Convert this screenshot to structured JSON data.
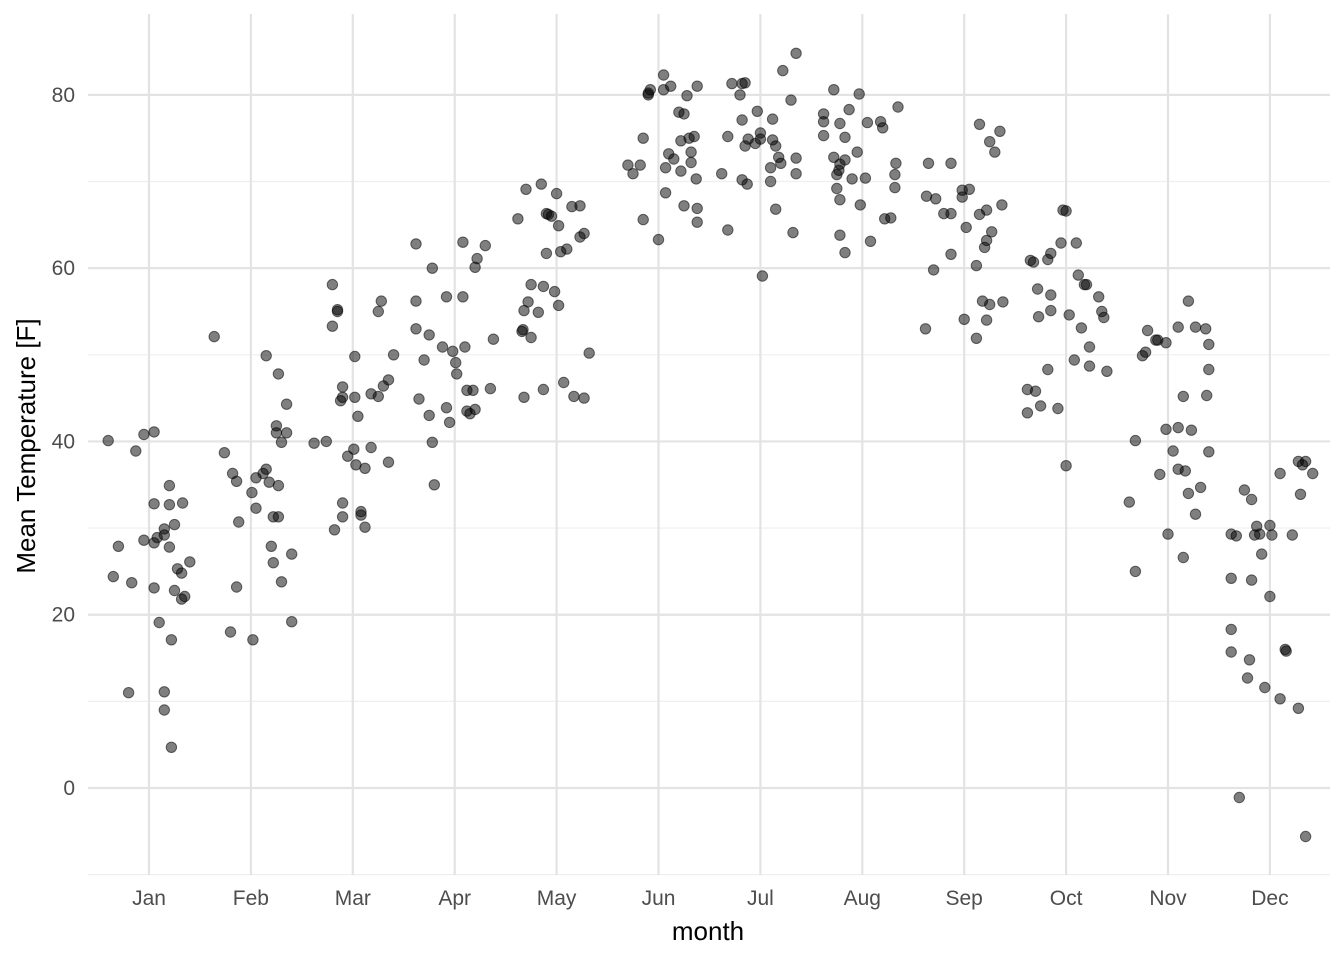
{
  "chart_data": {
    "type": "scatter",
    "title": "",
    "xlabel": "month",
    "ylabel": "Mean Temperature [F]",
    "categories": [
      "Jan",
      "Feb",
      "Mar",
      "Apr",
      "May",
      "Jun",
      "Jul",
      "Aug",
      "Sep",
      "Oct",
      "Nov",
      "Dec"
    ],
    "ylim": [
      -10,
      89
    ],
    "y_ticks": [
      0,
      20,
      40,
      60,
      80
    ],
    "grid": true,
    "legend": "none",
    "point_color": "#000000",
    "point_opacity": 0.5,
    "x_unit": "month index (1 = Jan), jittered horizontally",
    "points": [
      [
        0.6,
        40.1
      ],
      [
        0.7,
        27.9
      ],
      [
        0.65,
        24.4
      ],
      [
        0.8,
        11
      ],
      [
        0.83,
        23.7
      ],
      [
        0.87,
        38.9
      ],
      [
        0.95,
        28.6
      ],
      [
        0.95,
        40.8
      ],
      [
        1.05,
        41.1
      ],
      [
        1.05,
        23.1
      ],
      [
        1.05,
        32.8
      ],
      [
        1.05,
        28.3
      ],
      [
        1.1,
        19.1
      ],
      [
        1.15,
        29.2
      ],
      [
        1.15,
        29.9
      ],
      [
        1.15,
        11.1
      ],
      [
        1.15,
        9
      ],
      [
        1.2,
        27.8
      ],
      [
        1.2,
        32.7
      ],
      [
        1.2,
        34.9
      ],
      [
        1.22,
        17.1
      ],
      [
        1.22,
        4.7
      ],
      [
        1.25,
        30.4
      ],
      [
        1.25,
        22.8
      ],
      [
        1.28,
        25.3
      ],
      [
        1.32,
        24.8
      ],
      [
        1.32,
        21.8
      ],
      [
        1.33,
        32.9
      ],
      [
        1.35,
        22.1
      ],
      [
        1.4,
        26.1
      ],
      [
        1.08,
        28.9
      ],
      [
        1.64,
        52.1
      ],
      [
        1.74,
        38.7
      ],
      [
        1.8,
        18
      ],
      [
        1.82,
        36.3
      ],
      [
        1.86,
        35.4
      ],
      [
        1.86,
        23.2
      ],
      [
        1.88,
        30.7
      ],
      [
        2.01,
        34.1
      ],
      [
        2.02,
        17.1
      ],
      [
        2.05,
        32.3
      ],
      [
        2.05,
        35.8
      ],
      [
        2.12,
        36.3
      ],
      [
        2.15,
        36.8
      ],
      [
        2.15,
        49.9
      ],
      [
        2.18,
        35.3
      ],
      [
        2.2,
        27.9
      ],
      [
        2.22,
        31.3
      ],
      [
        2.22,
        26
      ],
      [
        2.25,
        41.8
      ],
      [
        2.25,
        41
      ],
      [
        2.27,
        47.8
      ],
      [
        2.27,
        31.3
      ],
      [
        2.27,
        34.9
      ],
      [
        2.3,
        23.8
      ],
      [
        2.3,
        39.9
      ],
      [
        2.35,
        41
      ],
      [
        2.35,
        44.3
      ],
      [
        2.4,
        27
      ],
      [
        2.4,
        19.2
      ],
      [
        2.62,
        39.8
      ],
      [
        2.74,
        40
      ],
      [
        2.8,
        58.1
      ],
      [
        2.8,
        53.3
      ],
      [
        2.82,
        29.8
      ],
      [
        2.85,
        55.2
      ],
      [
        2.85,
        55
      ],
      [
        2.88,
        44.7
      ],
      [
        2.9,
        31.3
      ],
      [
        2.9,
        32.9
      ],
      [
        2.9,
        45.1
      ],
      [
        2.9,
        46.3
      ],
      [
        2.95,
        38.3
      ],
      [
        3.01,
        39.1
      ],
      [
        3.02,
        49.8
      ],
      [
        3.02,
        45.1
      ],
      [
        3.03,
        37.3
      ],
      [
        3.05,
        42.9
      ],
      [
        3.08,
        31.5
      ],
      [
        3.08,
        31.9
      ],
      [
        3.12,
        36.9
      ],
      [
        3.12,
        30.1
      ],
      [
        3.18,
        39.3
      ],
      [
        3.18,
        45.5
      ],
      [
        3.25,
        55
      ],
      [
        3.25,
        45.2
      ],
      [
        3.28,
        56.2
      ],
      [
        3.3,
        46.4
      ],
      [
        3.35,
        47.1
      ],
      [
        3.35,
        37.6
      ],
      [
        3.4,
        50
      ],
      [
        3.62,
        62.8
      ],
      [
        3.62,
        56.2
      ],
      [
        3.62,
        53
      ],
      [
        3.65,
        44.9
      ],
      [
        3.7,
        49.4
      ],
      [
        3.75,
        43
      ],
      [
        3.75,
        52.3
      ],
      [
        3.78,
        60
      ],
      [
        3.78,
        39.9
      ],
      [
        3.8,
        35
      ],
      [
        3.88,
        50.9
      ],
      [
        3.92,
        56.7
      ],
      [
        3.92,
        43.9
      ],
      [
        3.95,
        42.2
      ],
      [
        3.98,
        50.4
      ],
      [
        4.01,
        49.1
      ],
      [
        4.02,
        47.8
      ],
      [
        4.08,
        63
      ],
      [
        4.08,
        56.7
      ],
      [
        4.1,
        50.9
      ],
      [
        4.12,
        45.9
      ],
      [
        4.12,
        43.5
      ],
      [
        4.15,
        43.2
      ],
      [
        4.18,
        45.9
      ],
      [
        4.2,
        60.1
      ],
      [
        4.2,
        43.7
      ],
      [
        4.22,
        61.1
      ],
      [
        4.3,
        62.6
      ],
      [
        4.35,
        46.1
      ],
      [
        4.38,
        51.8
      ],
      [
        4.62,
        65.7
      ],
      [
        4.66,
        52.7
      ],
      [
        4.67,
        52.9
      ],
      [
        4.68,
        55.1
      ],
      [
        4.68,
        45.1
      ],
      [
        4.7,
        69.1
      ],
      [
        4.72,
        56.1
      ],
      [
        4.75,
        52
      ],
      [
        4.75,
        58.1
      ],
      [
        4.82,
        54.9
      ],
      [
        4.85,
        69.7
      ],
      [
        4.87,
        57.9
      ],
      [
        4.87,
        46
      ],
      [
        4.9,
        61.7
      ],
      [
        4.9,
        66.3
      ],
      [
        4.92,
        66.2
      ],
      [
        4.95,
        66
      ],
      [
        4.98,
        57.3
      ],
      [
        5.0,
        68.6
      ],
      [
        5.02,
        64.9
      ],
      [
        5.02,
        55.7
      ],
      [
        5.04,
        61.9
      ],
      [
        5.07,
        46.8
      ],
      [
        5.1,
        62.2
      ],
      [
        5.15,
        67.1
      ],
      [
        5.17,
        45.2
      ],
      [
        5.23,
        67.2
      ],
      [
        5.23,
        63.6
      ],
      [
        5.27,
        64
      ],
      [
        5.27,
        45
      ],
      [
        5.32,
        50.2
      ],
      [
        5.7,
        71.9
      ],
      [
        5.75,
        70.9
      ],
      [
        5.82,
        71.9
      ],
      [
        5.85,
        75
      ],
      [
        5.85,
        65.6
      ],
      [
        5.9,
        80.2
      ],
      [
        5.9,
        80
      ],
      [
        5.92,
        80.6
      ],
      [
        6.0,
        63.3
      ],
      [
        6.05,
        82.3
      ],
      [
        6.05,
        80.6
      ],
      [
        6.07,
        71.6
      ],
      [
        6.07,
        68.7
      ],
      [
        6.1,
        73.2
      ],
      [
        6.12,
        81
      ],
      [
        6.15,
        72.6
      ],
      [
        6.2,
        78
      ],
      [
        6.22,
        71.2
      ],
      [
        6.22,
        74.7
      ],
      [
        6.25,
        67.2
      ],
      [
        6.25,
        77.8
      ],
      [
        6.28,
        79.9
      ],
      [
        6.3,
        75
      ],
      [
        6.32,
        73.4
      ],
      [
        6.32,
        72.2
      ],
      [
        6.35,
        75.2
      ],
      [
        6.37,
        70.3
      ],
      [
        6.38,
        81
      ],
      [
        6.38,
        65.3
      ],
      [
        6.38,
        66.9
      ],
      [
        6.62,
        70.9
      ],
      [
        6.68,
        64.4
      ],
      [
        6.68,
        75.2
      ],
      [
        6.72,
        81.3
      ],
      [
        6.8,
        80
      ],
      [
        6.82,
        81.3
      ],
      [
        6.82,
        70.2
      ],
      [
        6.82,
        77.1
      ],
      [
        6.85,
        81.4
      ],
      [
        6.85,
        74.1
      ],
      [
        6.87,
        69.7
      ],
      [
        6.88,
        74.9
      ],
      [
        6.95,
        74.4
      ],
      [
        6.97,
        78.1
      ],
      [
        7.0,
        74.9
      ],
      [
        7.0,
        75.6
      ],
      [
        7.02,
        59.1
      ],
      [
        7.1,
        70
      ],
      [
        7.1,
        71.6
      ],
      [
        7.12,
        77.2
      ],
      [
        7.12,
        74.8
      ],
      [
        7.15,
        66.8
      ],
      [
        7.15,
        74.1
      ],
      [
        7.18,
        72.8
      ],
      [
        7.2,
        72.1
      ],
      [
        7.22,
        82.8
      ],
      [
        7.3,
        79.4
      ],
      [
        7.32,
        64.1
      ],
      [
        7.35,
        72.7
      ],
      [
        7.35,
        70.9
      ],
      [
        7.35,
        84.8
      ],
      [
        7.62,
        77.8
      ],
      [
        7.62,
        75.3
      ],
      [
        7.62,
        76.9
      ],
      [
        7.72,
        80.6
      ],
      [
        7.72,
        72.8
      ],
      [
        7.75,
        70.8
      ],
      [
        7.75,
        69.2
      ],
      [
        7.77,
        71.3
      ],
      [
        7.78,
        67.9
      ],
      [
        7.78,
        63.8
      ],
      [
        7.78,
        76.7
      ],
      [
        7.78,
        72
      ],
      [
        7.83,
        75.1
      ],
      [
        7.83,
        72.5
      ],
      [
        7.83,
        61.8
      ],
      [
        7.87,
        78.3
      ],
      [
        7.9,
        70.3
      ],
      [
        7.95,
        73.4
      ],
      [
        7.97,
        80.1
      ],
      [
        7.98,
        67.3
      ],
      [
        8.03,
        70.4
      ],
      [
        8.05,
        76.8
      ],
      [
        8.08,
        63.1
      ],
      [
        8.18,
        76.9
      ],
      [
        8.2,
        76.2
      ],
      [
        8.22,
        65.7
      ],
      [
        8.28,
        65.8
      ],
      [
        8.32,
        70.8
      ],
      [
        8.32,
        69.3
      ],
      [
        8.33,
        72.1
      ],
      [
        8.35,
        78.6
      ],
      [
        8.62,
        53
      ],
      [
        8.63,
        68.3
      ],
      [
        8.65,
        72.1
      ],
      [
        8.7,
        59.8
      ],
      [
        8.72,
        68
      ],
      [
        8.8,
        66.3
      ],
      [
        8.87,
        72.1
      ],
      [
        8.87,
        66.3
      ],
      [
        8.87,
        61.6
      ],
      [
        8.98,
        69
      ],
      [
        8.98,
        68.2
      ],
      [
        9.0,
        54.1
      ],
      [
        9.02,
        64.7
      ],
      [
        9.05,
        69.1
      ],
      [
        9.12,
        51.9
      ],
      [
        9.12,
        60.3
      ],
      [
        9.15,
        76.6
      ],
      [
        9.15,
        66.2
      ],
      [
        9.18,
        56.2
      ],
      [
        9.2,
        62.4
      ],
      [
        9.22,
        63.2
      ],
      [
        9.22,
        54
      ],
      [
        9.22,
        66.7
      ],
      [
        9.25,
        55.8
      ],
      [
        9.25,
        74.6
      ],
      [
        9.27,
        64.2
      ],
      [
        9.3,
        73.4
      ],
      [
        9.35,
        75.8
      ],
      [
        9.37,
        67.3
      ],
      [
        9.38,
        56.1
      ],
      [
        9.62,
        46
      ],
      [
        9.62,
        43.3
      ],
      [
        9.65,
        60.9
      ],
      [
        9.68,
        60.7
      ],
      [
        9.7,
        45.8
      ],
      [
        9.72,
        57.6
      ],
      [
        9.73,
        54.4
      ],
      [
        9.75,
        44.1
      ],
      [
        9.82,
        61
      ],
      [
        9.82,
        48.3
      ],
      [
        9.85,
        61.7
      ],
      [
        9.85,
        56.9
      ],
      [
        9.85,
        55.1
      ],
      [
        9.92,
        43.8
      ],
      [
        9.95,
        62.9
      ],
      [
        9.97,
        66.7
      ],
      [
        10.0,
        66.6
      ],
      [
        10.0,
        37.2
      ],
      [
        10.03,
        54.6
      ],
      [
        10.08,
        49.4
      ],
      [
        10.1,
        62.9
      ],
      [
        10.12,
        59.2
      ],
      [
        10.15,
        53.1
      ],
      [
        10.18,
        58.1
      ],
      [
        10.2,
        58.1
      ],
      [
        10.23,
        50.9
      ],
      [
        10.23,
        48.7
      ],
      [
        10.32,
        56.7
      ],
      [
        10.35,
        55
      ],
      [
        10.37,
        54.3
      ],
      [
        10.4,
        48.1
      ],
      [
        10.62,
        33
      ],
      [
        10.68,
        25
      ],
      [
        10.68,
        40.1
      ],
      [
        10.78,
        50.3
      ],
      [
        10.75,
        49.9
      ],
      [
        10.8,
        52.8
      ],
      [
        10.88,
        51.7
      ],
      [
        10.9,
        51.7
      ],
      [
        10.92,
        36.2
      ],
      [
        10.98,
        51.4
      ],
      [
        10.98,
        41.4
      ],
      [
        11.0,
        29.3
      ],
      [
        11.05,
        38.9
      ],
      [
        11.1,
        53.2
      ],
      [
        11.1,
        36.8
      ],
      [
        11.1,
        41.6
      ],
      [
        11.15,
        26.6
      ],
      [
        11.15,
        45.2
      ],
      [
        11.17,
        36.6
      ],
      [
        11.2,
        56.2
      ],
      [
        11.2,
        34
      ],
      [
        11.23,
        41.3
      ],
      [
        11.27,
        31.6
      ],
      [
        11.27,
        53.2
      ],
      [
        11.32,
        34.7
      ],
      [
        11.37,
        53
      ],
      [
        11.38,
        45.3
      ],
      [
        11.4,
        38.8
      ],
      [
        11.4,
        48.3
      ],
      [
        11.4,
        51.2
      ],
      [
        11.62,
        29.3
      ],
      [
        11.62,
        15.7
      ],
      [
        11.62,
        18.3
      ],
      [
        11.62,
        24.2
      ],
      [
        11.67,
        29.1
      ],
      [
        11.75,
        34.4
      ],
      [
        11.7,
        -1.1
      ],
      [
        11.78,
        12.7
      ],
      [
        11.8,
        14.8
      ],
      [
        11.82,
        24
      ],
      [
        11.82,
        33.3
      ],
      [
        11.85,
        29.2
      ],
      [
        11.87,
        30.2
      ],
      [
        11.9,
        29.3
      ],
      [
        11.92,
        27
      ],
      [
        11.95,
        11.6
      ],
      [
        12.0,
        30.3
      ],
      [
        12.0,
        22.1
      ],
      [
        12.02,
        29.2
      ],
      [
        12.1,
        10.3
      ],
      [
        12.1,
        36.3
      ],
      [
        12.15,
        16
      ],
      [
        12.16,
        15.8
      ],
      [
        12.22,
        29.2
      ],
      [
        12.28,
        37.7
      ],
      [
        12.28,
        9.2
      ],
      [
        12.3,
        33.9
      ],
      [
        12.32,
        37.3
      ],
      [
        12.35,
        37.7
      ],
      [
        12.35,
        -5.6
      ],
      [
        12.42,
        36.3
      ]
    ]
  }
}
